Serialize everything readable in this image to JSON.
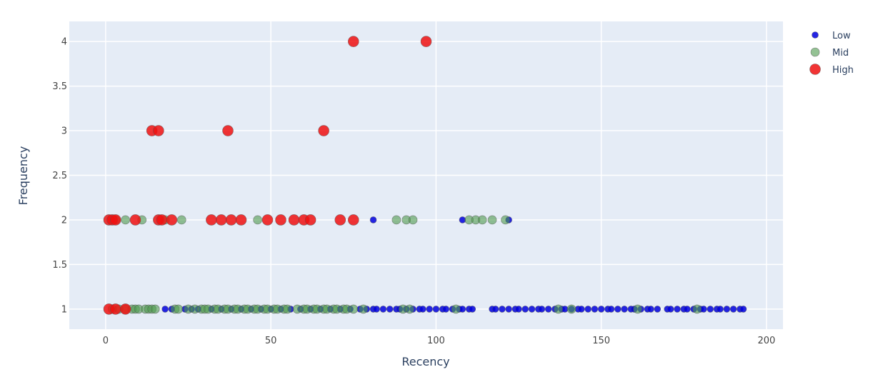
{
  "chart_data": {
    "type": "scatter",
    "title": "",
    "xlabel": "Recency",
    "ylabel": "Frequency",
    "xlim": [
      -11,
      205
    ],
    "ylim": [
      0.775,
      4.225
    ],
    "xticks": [
      0,
      50,
      100,
      150,
      200
    ],
    "yticks": [
      1,
      1.5,
      2,
      2.5,
      3,
      3.5,
      4
    ],
    "ytick_labels": [
      "1",
      "1.5",
      "2",
      "2.5",
      "3",
      "3.5",
      "4"
    ],
    "grid": true,
    "legend_position": "top-right",
    "series": [
      {
        "name": "Low",
        "color": "#0000dd",
        "marker_size": "small",
        "x": [
          18,
          20,
          24,
          26,
          28,
          32,
          35,
          38,
          41,
          44,
          47,
          50,
          53,
          56,
          59,
          62,
          65,
          68,
          71,
          74,
          77,
          79,
          81,
          82,
          84,
          86,
          88,
          89,
          91,
          93,
          95,
          96,
          98,
          100,
          102,
          103,
          105,
          107,
          108,
          110,
          111,
          117,
          118,
          120,
          122,
          124,
          125,
          127,
          129,
          131,
          132,
          134,
          136,
          138,
          139,
          141,
          143,
          144,
          146,
          148,
          150,
          152,
          153,
          155,
          157,
          159,
          160,
          162,
          164,
          165,
          167,
          170,
          171,
          173,
          175,
          176,
          178,
          180,
          181,
          183,
          185,
          186,
          188,
          190,
          192,
          193,
          81,
          108,
          122
        ],
        "y": [
          1,
          1,
          1,
          1,
          1,
          1,
          1,
          1,
          1,
          1,
          1,
          1,
          1,
          1,
          1,
          1,
          1,
          1,
          1,
          1,
          1,
          1,
          1,
          1,
          1,
          1,
          1,
          1,
          1,
          1,
          1,
          1,
          1,
          1,
          1,
          1,
          1,
          1,
          1,
          1,
          1,
          1,
          1,
          1,
          1,
          1,
          1,
          1,
          1,
          1,
          1,
          1,
          1,
          1,
          1,
          1,
          1,
          1,
          1,
          1,
          1,
          1,
          1,
          1,
          1,
          1,
          1,
          1,
          1,
          1,
          1,
          1,
          1,
          1,
          1,
          1,
          1,
          1,
          1,
          1,
          1,
          1,
          1,
          1,
          1,
          1,
          2,
          2,
          2
        ]
      },
      {
        "name": "Mid",
        "color": "#4c9a4c",
        "marker_size": "medium",
        "x": [
          2,
          4,
          6,
          8,
          9,
          10,
          12,
          13,
          14,
          15,
          21,
          22,
          25,
          27,
          29,
          30,
          31,
          33,
          34,
          36,
          37,
          39,
          40,
          42,
          43,
          45,
          46,
          48,
          49,
          51,
          52,
          54,
          55,
          58,
          60,
          61,
          63,
          64,
          66,
          67,
          69,
          70,
          72,
          73,
          75,
          78,
          90,
          92,
          106,
          137,
          141,
          161,
          179,
          3,
          6,
          11,
          18,
          23,
          46,
          88,
          91,
          93,
          110,
          112,
          114,
          117,
          121
        ],
        "y": [
          1,
          1,
          1,
          1,
          1,
          1,
          1,
          1,
          1,
          1,
          1,
          1,
          1,
          1,
          1,
          1,
          1,
          1,
          1,
          1,
          1,
          1,
          1,
          1,
          1,
          1,
          1,
          1,
          1,
          1,
          1,
          1,
          1,
          1,
          1,
          1,
          1,
          1,
          1,
          1,
          1,
          1,
          1,
          1,
          1,
          1,
          1,
          1,
          1,
          1,
          1,
          1,
          1,
          2,
          2,
          2,
          2,
          2,
          2,
          2,
          2,
          2,
          2,
          2,
          2,
          2,
          2
        ]
      },
      {
        "name": "High",
        "color": "#ee1111",
        "marker_size": "large",
        "x": [
          1,
          3,
          6,
          1,
          2,
          3,
          9,
          16,
          17,
          20,
          32,
          35,
          38,
          41,
          49,
          53,
          57,
          60,
          62,
          71,
          75,
          14,
          16,
          37,
          66,
          75,
          97
        ],
        "y": [
          1,
          1,
          1,
          2,
          2,
          2,
          2,
          2,
          2,
          2,
          2,
          2,
          2,
          2,
          2,
          2,
          2,
          2,
          2,
          2,
          2,
          3,
          3,
          3,
          3,
          4,
          4
        ]
      }
    ]
  }
}
